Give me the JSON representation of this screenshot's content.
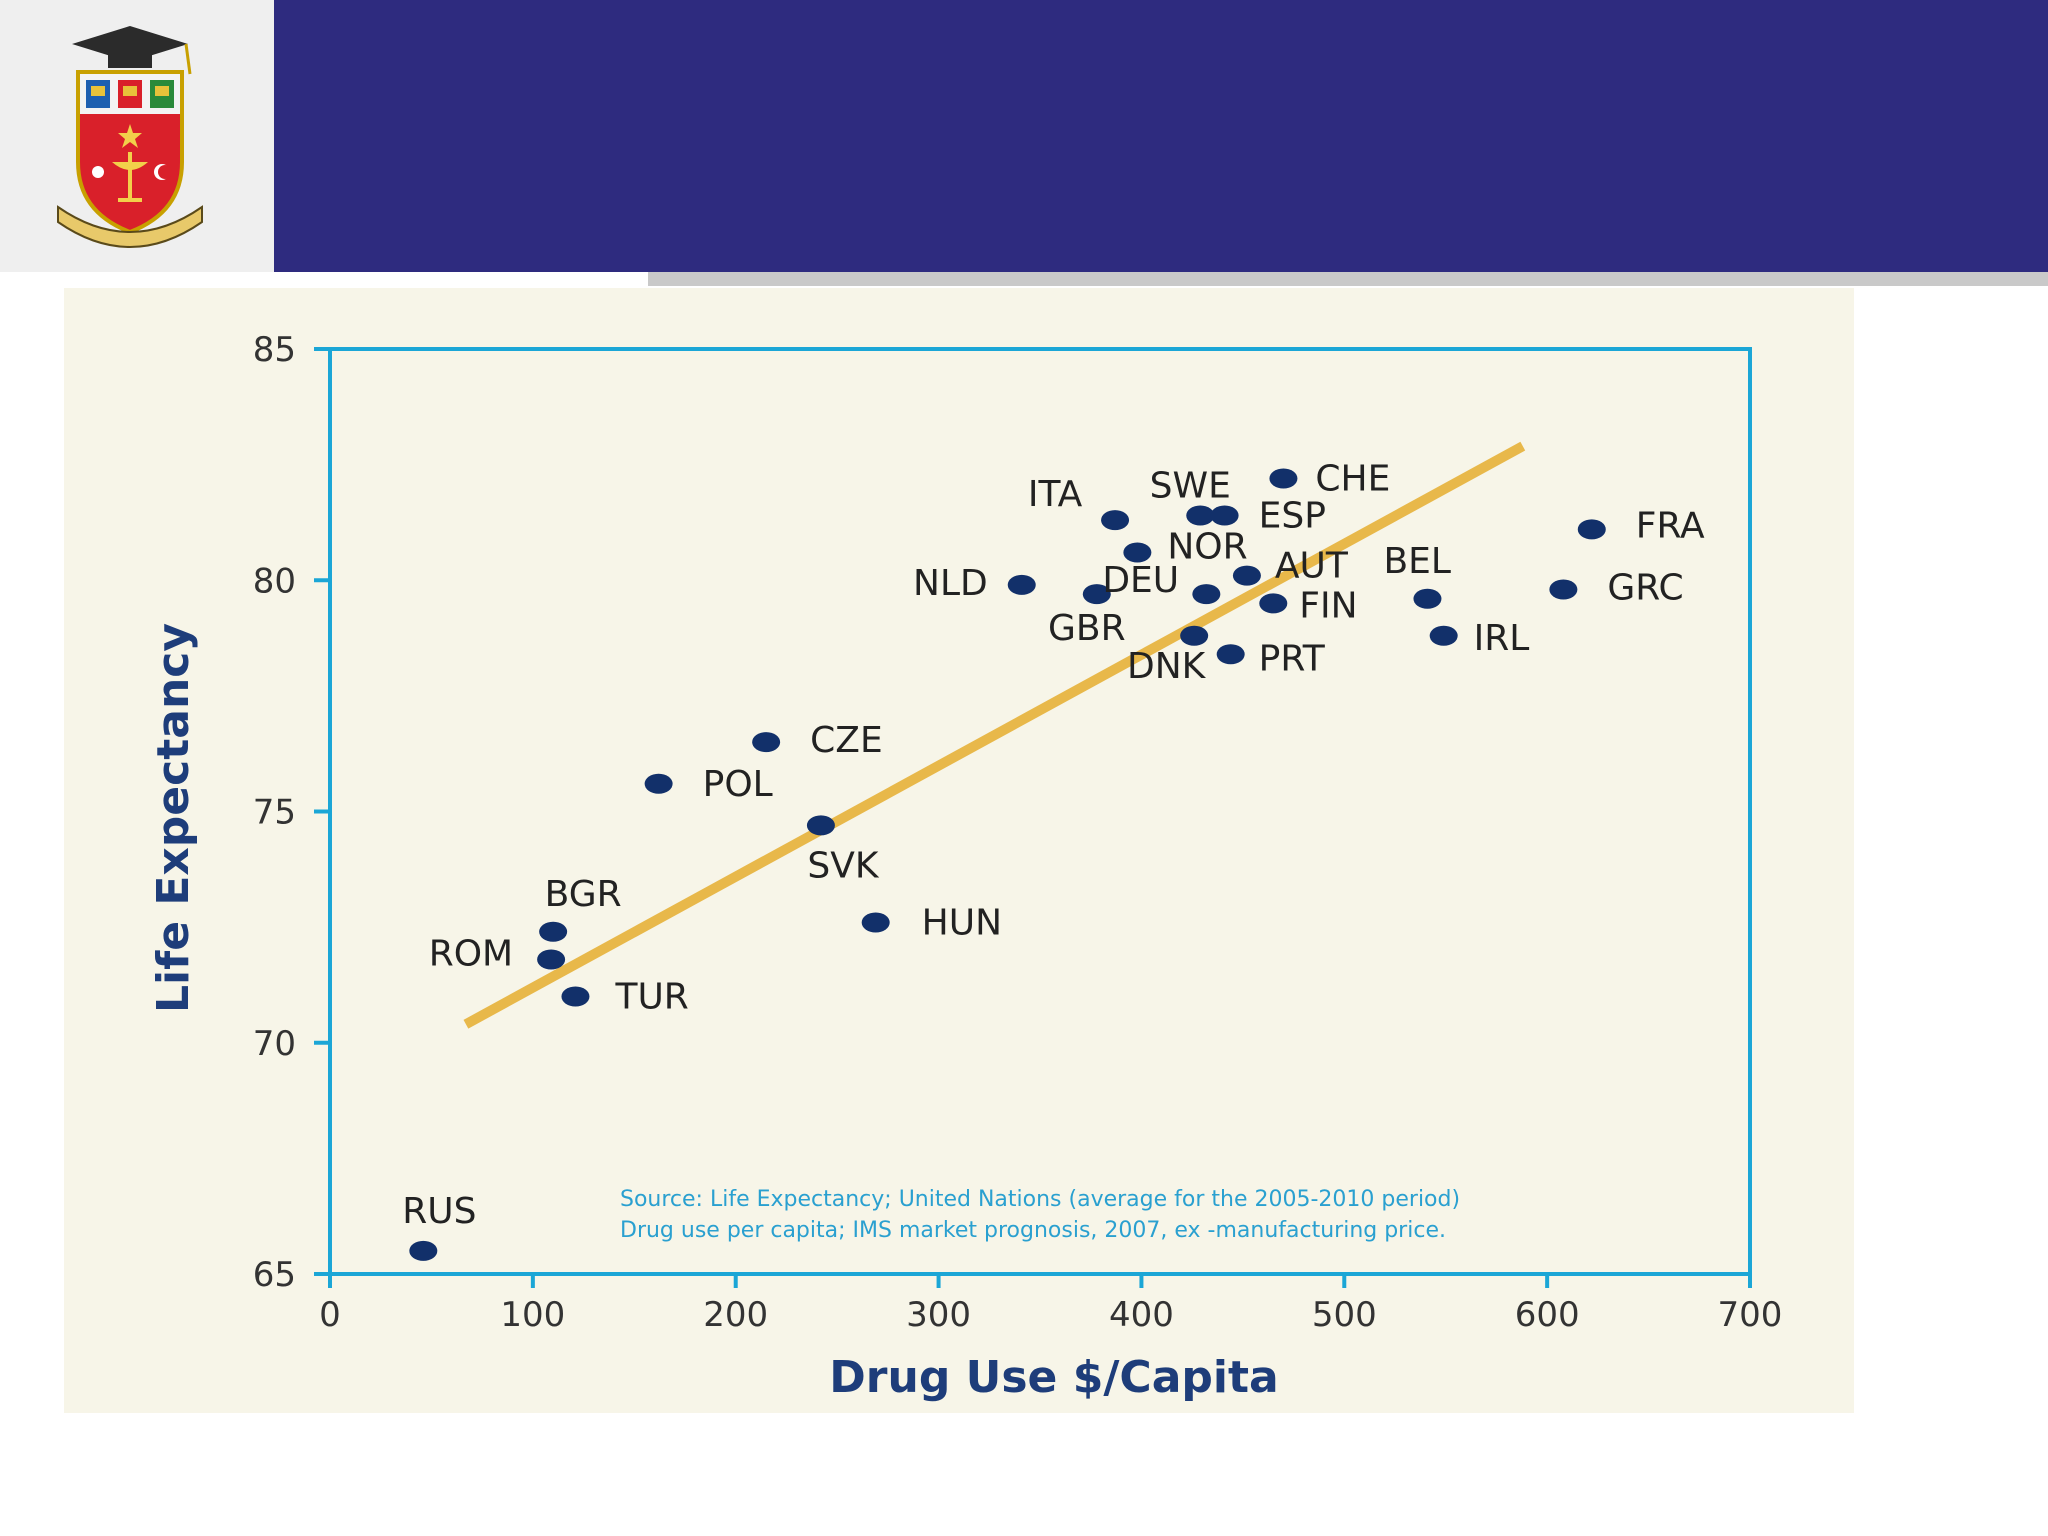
{
  "colors": {
    "banner": "#2e2b7f",
    "chart_background": "#f7f5e8",
    "axis": "#1ba6d6",
    "point": "#12306a",
    "trend": "#e8b84a",
    "axis_title": "#1e3d7a",
    "source_text": "#2aa0d0"
  },
  "logo": {
    "icon": "university-crest-icon"
  },
  "chart_data": {
    "type": "scatter",
    "title": "",
    "xlabel": "Drug Use $/Capita",
    "ylabel": "Life Expectancy",
    "xlim": [
      0,
      700
    ],
    "ylim": [
      65,
      85
    ],
    "x_ticks": [
      0,
      100,
      200,
      300,
      400,
      500,
      600,
      700
    ],
    "y_ticks": [
      65,
      70,
      75,
      80,
      85
    ],
    "points": [
      {
        "label": "RUS",
        "x": 46,
        "y": 65.5
      },
      {
        "label": "ROM",
        "x": 109,
        "y": 71.8
      },
      {
        "label": "BGR",
        "x": 110,
        "y": 72.4
      },
      {
        "label": "TUR",
        "x": 121,
        "y": 71.0
      },
      {
        "label": "POL",
        "x": 162,
        "y": 75.6
      },
      {
        "label": "CZE",
        "x": 215,
        "y": 76.5
      },
      {
        "label": "SVK",
        "x": 242,
        "y": 74.7
      },
      {
        "label": "HUN",
        "x": 269,
        "y": 72.6
      },
      {
        "label": "NLD",
        "x": 341,
        "y": 79.9
      },
      {
        "label": "GBR",
        "x": 378,
        "y": 79.7
      },
      {
        "label": "ITA",
        "x": 387,
        "y": 81.3
      },
      {
        "label": "NOR",
        "x": 398,
        "y": 80.6
      },
      {
        "label": "DNK",
        "x": 426,
        "y": 78.8
      },
      {
        "label": "SWE",
        "x": 429,
        "y": 81.4
      },
      {
        "label": "DEU",
        "x": 432,
        "y": 79.7
      },
      {
        "label": "ESP",
        "x": 441,
        "y": 81.4
      },
      {
        "label": "PRT",
        "x": 444,
        "y": 78.4
      },
      {
        "label": "AUT",
        "x": 452,
        "y": 80.1
      },
      {
        "label": "FIN",
        "x": 465,
        "y": 79.5
      },
      {
        "label": "CHE",
        "x": 470,
        "y": 82.2
      },
      {
        "label": "BEL",
        "x": 541,
        "y": 79.6
      },
      {
        "label": "IRL",
        "x": 549,
        "y": 78.8
      },
      {
        "label": "GRC",
        "x": 608,
        "y": 79.8
      },
      {
        "label": "FRA",
        "x": 622,
        "y": 81.1
      }
    ],
    "trendline": {
      "x": [
        67,
        588
      ],
      "y": [
        70.4,
        82.9
      ]
    },
    "annotations": [
      "Source: Life Expectancy; United Nations (average for the 2005-2010 period)",
      "Drug use per capita; IMS market prognosis, 2007, ex -manufacturing price."
    ]
  }
}
